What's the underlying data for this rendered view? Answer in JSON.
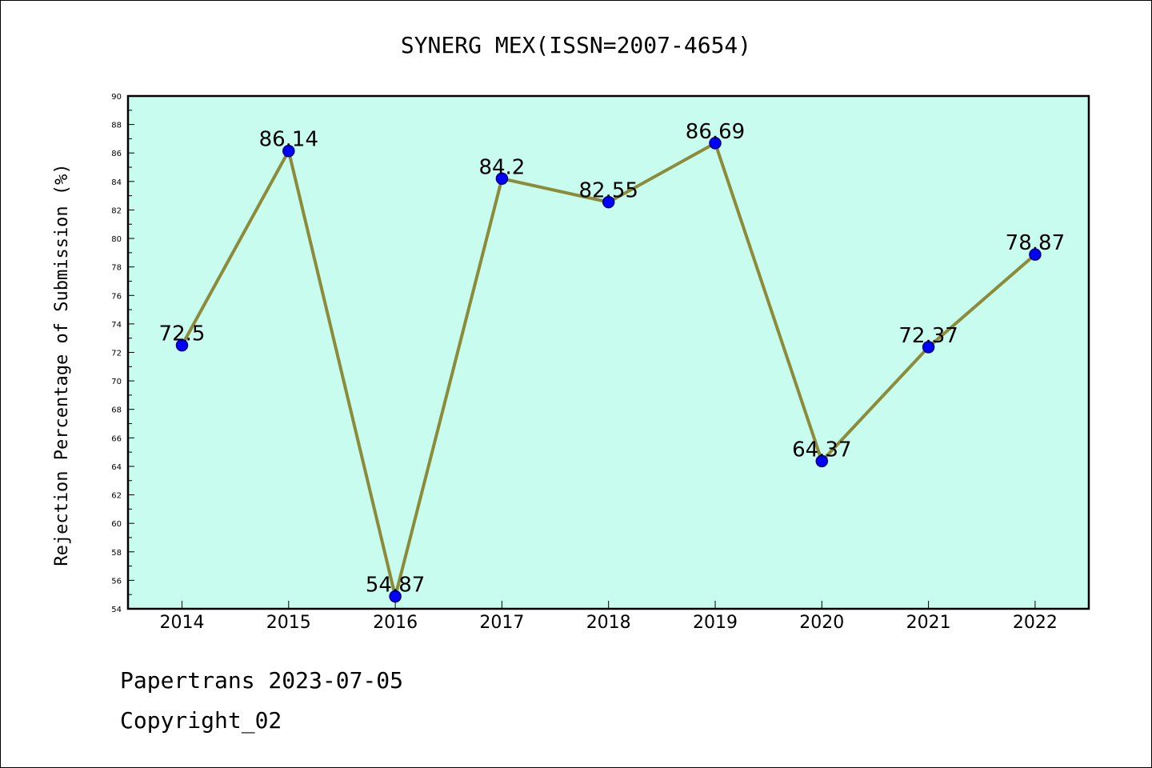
{
  "chart_data": {
    "type": "line",
    "title": "SYNERG MEX(ISSN=2007-4654)",
    "ylabel": "Rejection Percentage of Submission (%)",
    "xlabel": "",
    "categories": [
      "2014",
      "2015",
      "2016",
      "2017",
      "2018",
      "2019",
      "2020",
      "2021",
      "2022"
    ],
    "series": [
      {
        "values": [
          72.5,
          86.14,
          54.87,
          84.2,
          82.55,
          86.69,
          64.37,
          72.37,
          78.87
        ],
        "data_labels": [
          "72.5",
          "86.14",
          "54.87",
          "84.2",
          "82.55",
          "86.69",
          "64.37",
          "72.37",
          "78.87"
        ]
      }
    ],
    "ylim": [
      54,
      90
    ],
    "yticks": [
      "54",
      "56",
      "58",
      "60",
      "62",
      "64",
      "66",
      "68",
      "70",
      "72",
      "74",
      "76",
      "78",
      "80",
      "82",
      "84",
      "86",
      "88",
      "90"
    ],
    "grid": false,
    "legend": "none",
    "colors": {
      "plot_background": "#c8fcee",
      "line": "#8b8b3a",
      "marker": "#0000ff",
      "marker_edge": "#00007f"
    }
  },
  "footer": {
    "date_line": "Papertrans 2023-07-05",
    "copyright_line": "Copyright_02"
  }
}
